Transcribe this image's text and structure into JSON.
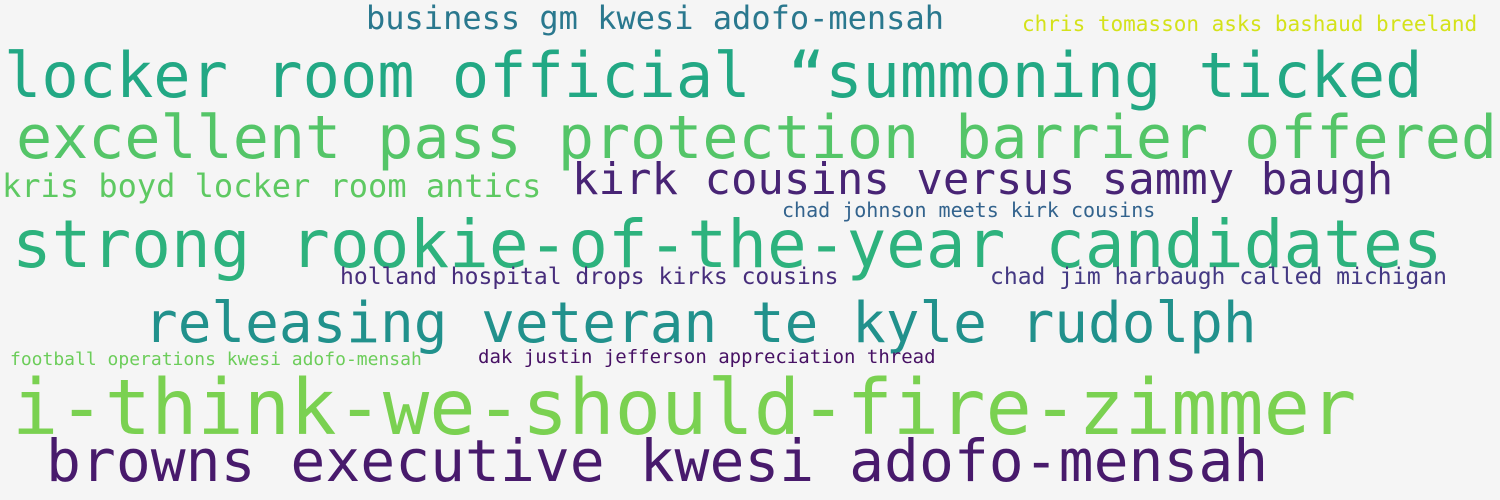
{
  "phrases": [
    {
      "text": "business gm kwesi adofo-mensah",
      "color": "#2a788e"
    },
    {
      "text": "chris tomasson asks bashaud breeland",
      "color": "#d4e21a"
    },
    {
      "text": "locker room official “summoning ticked",
      "color": "#22a884"
    },
    {
      "text": "excellent pass protection barrier offered",
      "color": "#54c568"
    },
    {
      "text": "kris boyd locker room antics",
      "color": "#5ec962"
    },
    {
      "text": "kirk cousins versus sammy baugh",
      "color": "#482475"
    },
    {
      "text": "chad johnson meets kirk cousins",
      "color": "#33638d"
    },
    {
      "text": "strong rookie-of-the-year candidates",
      "color": "#2db27d"
    },
    {
      "text": "holland hospital drops kirks cousins",
      "color": "#472d7b"
    },
    {
      "text": "chad jim harbaugh called michigan",
      "color": "#443983"
    },
    {
      "text": "releasing veteran te kyle rudolph",
      "color": "#21918c"
    },
    {
      "text": "football operations kwesi adofo-mensah",
      "color": "#6ccd5a"
    },
    {
      "text": "dak justin jefferson appreciation thread",
      "color": "#471164"
    },
    {
      "text": "i-think-we-should-fire-zimmer",
      "color": "#7ad151"
    },
    {
      "text": "browns executive kwesi adofo-mensah",
      "color": "#481a6c"
    }
  ]
}
